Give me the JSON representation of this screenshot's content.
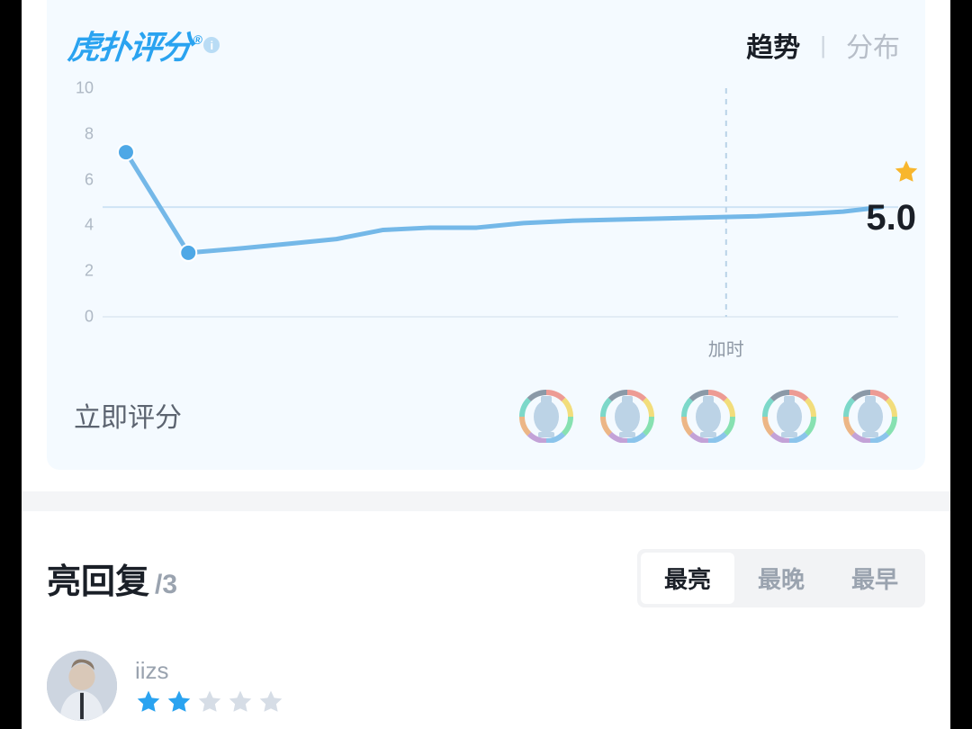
{
  "logo_text": "虎扑评分",
  "info_glyph": "i",
  "header_tabs": {
    "trend": "趋势",
    "dist": "分布",
    "active": "trend"
  },
  "chart": {
    "type": "line",
    "ylim": [
      0,
      10
    ],
    "ytick_step": 2,
    "yticks": [
      "10",
      "8",
      "6",
      "4",
      "2",
      "0"
    ],
    "x_range": [
      0,
      100
    ],
    "values": [
      {
        "x": 3,
        "y": 7.2,
        "marker": true
      },
      {
        "x": 11,
        "y": 2.8,
        "marker": true
      },
      {
        "x": 18,
        "y": 3.0
      },
      {
        "x": 24,
        "y": 3.2
      },
      {
        "x": 30,
        "y": 3.4
      },
      {
        "x": 36,
        "y": 3.8
      },
      {
        "x": 42,
        "y": 3.9
      },
      {
        "x": 48,
        "y": 3.9
      },
      {
        "x": 54,
        "y": 4.1
      },
      {
        "x": 60,
        "y": 4.2
      },
      {
        "x": 66,
        "y": 4.25
      },
      {
        "x": 72,
        "y": 4.3
      },
      {
        "x": 78,
        "y": 4.35
      },
      {
        "x": 84,
        "y": 4.4
      },
      {
        "x": 90,
        "y": 4.5
      },
      {
        "x": 95,
        "y": 4.6
      },
      {
        "x": 100,
        "y": 4.8
      }
    ],
    "reference_y": 4.8,
    "vertical_marker_x": 80,
    "vertical_marker_label": "加时",
    "end_star_color": "#f8b62d",
    "line_color": "#74b8e8",
    "line_width": 5,
    "marker_color": "#4ea8e6",
    "marker_radius": 9,
    "grid_color": "#e2ecf5",
    "ref_line_color": "#cfe4f5",
    "vline_color": "#b9d3e8",
    "label_color": "#aeb8c4",
    "background_color": "#f4faff",
    "label_fontsize": 18
  },
  "score_value": "5.0",
  "rate_now_label": "立即评分",
  "trophy_count": 5,
  "trophy_colors": {
    "body": "#bcd3e6",
    "arc_segments": [
      "#e74c3c",
      "#f1c40f",
      "#2ecc71",
      "#3498db",
      "#9b59b6",
      "#e67e22",
      "#1abc9c",
      "#34495e"
    ]
  },
  "divider_color": "#f4f5f7",
  "replies": {
    "title": "亮回复",
    "count": "/3",
    "sort_tabs": {
      "hot": "最亮",
      "latest": "最晚",
      "earliest": "最早",
      "active": "hot"
    }
  },
  "first_reply": {
    "username": "iizs",
    "star_rating": 2,
    "star_max": 5,
    "star_filled_color": "#2aa3f0",
    "star_empty_color": "#d6dde6"
  }
}
